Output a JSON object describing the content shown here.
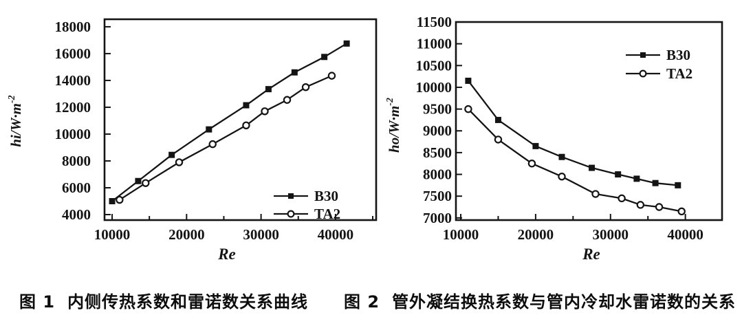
{
  "chart_data": [
    {
      "type": "line",
      "figure_label": "图 1",
      "caption_number": "图 1",
      "caption": "内侧传热系数和雷诺数关系曲线",
      "xlabel": "Re",
      "ylabel": "hi/W·m⁻²",
      "ylabel_base": "hi/W·m",
      "ylabel_sup": "-2",
      "xlim": [
        8980,
        45460
      ],
      "ylim": [
        3590,
        18560
      ],
      "x_ticks": [
        10000,
        20000,
        30000,
        40000
      ],
      "x_minor_ticks": [
        15000,
        25000,
        35000,
        45000
      ],
      "y_ticks": [
        4000,
        6000,
        8000,
        10000,
        12000,
        14000,
        16000,
        18000
      ],
      "grid": false,
      "legend_position": "inside-bottom-right",
      "line_color": "#141414",
      "series": [
        {
          "name": "B30",
          "marker": "filled-square",
          "x": [
            10000,
            13500,
            18000,
            23000,
            28000,
            31000,
            34500,
            38500,
            41500
          ],
          "y": [
            5000,
            6500,
            8450,
            10350,
            12150,
            13350,
            14600,
            15750,
            16750
          ]
        },
        {
          "name": "TA2",
          "marker": "open-circle",
          "x": [
            11000,
            14500,
            19000,
            23500,
            28000,
            30500,
            33500,
            36000,
            39500
          ],
          "y": [
            5100,
            6350,
            7900,
            9250,
            10650,
            11700,
            12550,
            13500,
            14350
          ]
        }
      ]
    },
    {
      "type": "line",
      "figure_label": "图 2",
      "caption_number": "图 2",
      "caption": "管外凝结换热系数与管内冷却水雷诺数的关系",
      "xlabel": "Re",
      "ylabel": "ho/W·m⁻²",
      "ylabel_base": "ho/W·m",
      "ylabel_sup": "-2",
      "xlim": [
        9355,
        44900
      ],
      "ylim": [
        6950,
        11500
      ],
      "x_ticks": [
        10000,
        20000,
        30000,
        40000
      ],
      "x_minor_ticks": [
        15000,
        25000,
        35000
      ],
      "y_ticks": [
        7000,
        7500,
        8000,
        8500,
        9000,
        9500,
        10000,
        10500,
        11000,
        11500
      ],
      "grid": false,
      "legend_position": "inside-top-right",
      "line_color": "#141414",
      "series": [
        {
          "name": "B30",
          "marker": "filled-square",
          "x": [
            11000,
            15000,
            20000,
            23500,
            27500,
            31000,
            33500,
            36000,
            39000
          ],
          "y": [
            10150,
            9250,
            8650,
            8400,
            8150,
            8000,
            7900,
            7800,
            7750
          ]
        },
        {
          "name": "TA2",
          "marker": "open-circle",
          "x": [
            11000,
            15000,
            19500,
            23500,
            28000,
            31500,
            34000,
            36500,
            39500
          ],
          "y": [
            9500,
            8800,
            8250,
            7950,
            7550,
            7450,
            7300,
            7250,
            7150
          ]
        }
      ]
    }
  ]
}
